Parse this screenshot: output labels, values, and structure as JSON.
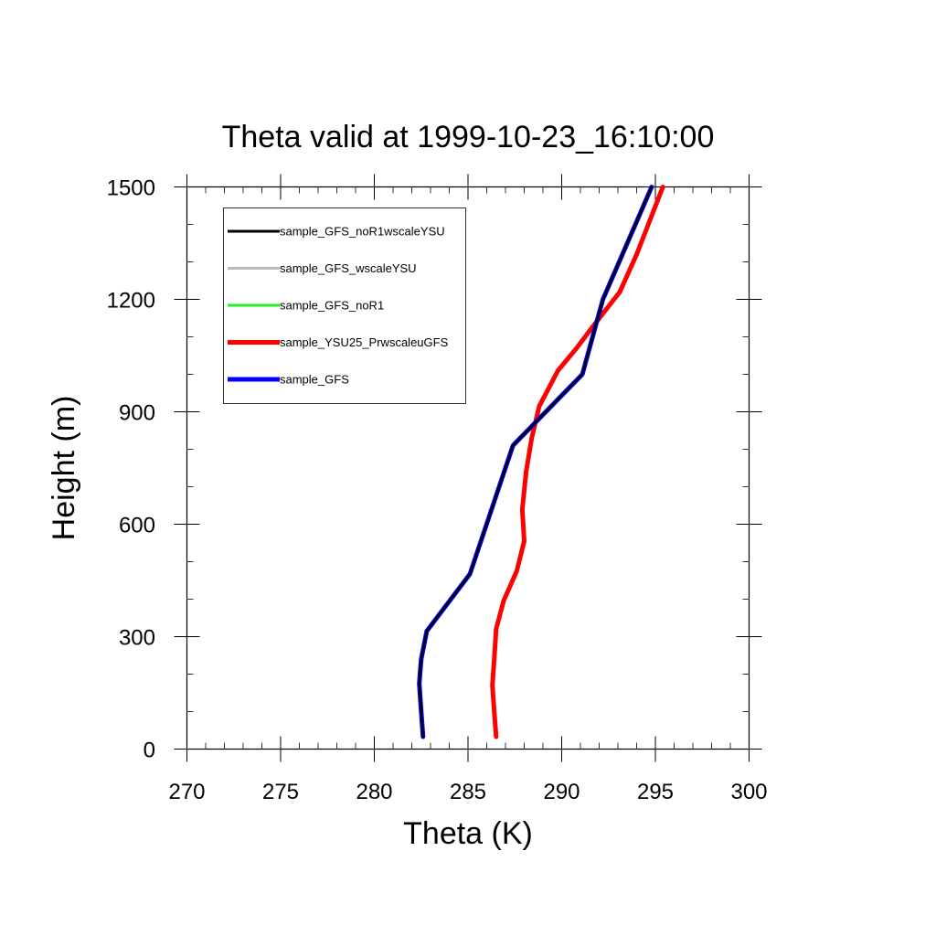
{
  "chart_data": {
    "type": "line",
    "title": "Theta valid at 1999-10-23_16:10:00",
    "xlabel": "Theta (K)",
    "ylabel": "Height (m)",
    "xlim": [
      270,
      300
    ],
    "ylim": [
      0,
      1500
    ],
    "xticks": [
      270,
      275,
      280,
      285,
      290,
      295,
      300
    ],
    "yticks": [
      0,
      300,
      600,
      900,
      1200,
      1500
    ],
    "grid": false,
    "legend_position": "top-left",
    "series": [
      {
        "name": "sample_GFS_noR1wscaleYSU",
        "color": "#000000",
        "points": [
          [
            282.6,
            33
          ],
          [
            282.5,
            100
          ],
          [
            282.4,
            175
          ],
          [
            282.5,
            240
          ],
          [
            282.8,
            315
          ],
          [
            285.1,
            467
          ],
          [
            287.4,
            810
          ],
          [
            291.1,
            1000
          ],
          [
            292.2,
            1200
          ],
          [
            293.5,
            1350
          ],
          [
            294.8,
            1500
          ]
        ]
      },
      {
        "name": "sample_GFS_wscaleYSU",
        "color": "#bbbbbb",
        "points": [
          [
            282.6,
            33
          ],
          [
            282.5,
            100
          ],
          [
            282.4,
            175
          ],
          [
            282.5,
            240
          ],
          [
            282.8,
            315
          ],
          [
            285.1,
            467
          ],
          [
            287.4,
            810
          ],
          [
            291.1,
            1000
          ],
          [
            292.2,
            1200
          ],
          [
            293.5,
            1350
          ],
          [
            294.8,
            1500
          ]
        ]
      },
      {
        "name": "sample_GFS_noR1",
        "color": "#22ee22",
        "points": [
          [
            282.6,
            33
          ],
          [
            282.5,
            100
          ],
          [
            282.4,
            175
          ],
          [
            282.5,
            240
          ],
          [
            282.8,
            315
          ],
          [
            285.1,
            467
          ],
          [
            287.4,
            810
          ],
          [
            291.1,
            1000
          ],
          [
            292.2,
            1200
          ],
          [
            293.5,
            1350
          ],
          [
            294.8,
            1500
          ]
        ]
      },
      {
        "name": "sample_YSU25_PrwscaleuGFS",
        "color": "#ff0000",
        "points": [
          [
            286.5,
            33
          ],
          [
            286.4,
            100
          ],
          [
            286.3,
            170
          ],
          [
            286.4,
            240
          ],
          [
            286.5,
            320
          ],
          [
            286.9,
            395
          ],
          [
            287.6,
            475
          ],
          [
            288.0,
            555
          ],
          [
            287.9,
            640
          ],
          [
            288.1,
            740
          ],
          [
            288.4,
            830
          ],
          [
            288.8,
            915
          ],
          [
            289.8,
            1010
          ],
          [
            290.8,
            1070
          ],
          [
            291.7,
            1130
          ],
          [
            293.1,
            1220
          ],
          [
            294.0,
            1320
          ],
          [
            295.4,
            1500
          ]
        ]
      },
      {
        "name": "sample_GFS",
        "color": "#0000ff",
        "points": [
          [
            282.6,
            33
          ],
          [
            282.5,
            100
          ],
          [
            282.4,
            175
          ],
          [
            282.5,
            240
          ],
          [
            282.8,
            315
          ],
          [
            285.1,
            467
          ],
          [
            287.4,
            810
          ],
          [
            291.1,
            1000
          ],
          [
            292.2,
            1200
          ],
          [
            293.5,
            1350
          ],
          [
            294.8,
            1500
          ]
        ]
      }
    ]
  }
}
